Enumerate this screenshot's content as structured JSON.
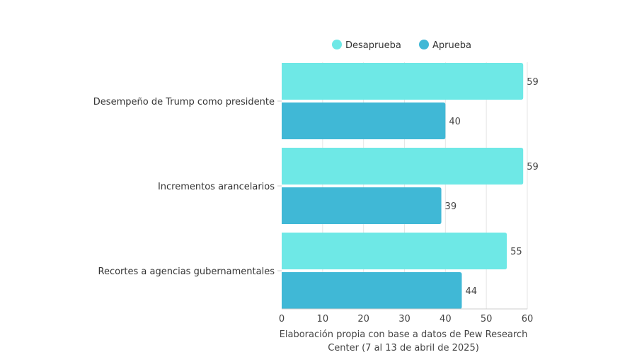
{
  "chart_data": {
    "type": "bar",
    "orientation": "horizontal",
    "categories": [
      "Desempeño de Trump como presidente",
      "Incrementos arancelarios",
      "Recortes a agencias gubernamentales"
    ],
    "series": [
      {
        "name": "Desaprueba",
        "color": "#6ee8e6",
        "values": [
          59,
          59,
          55
        ]
      },
      {
        "name": "Aprueba",
        "color": "#40b8d6",
        "values": [
          40,
          39,
          44
        ]
      }
    ],
    "xlabel_lines": [
      "Elaboración propia con base a datos de Pew Research",
      "Center (7 al 13 de abril de 2025)"
    ],
    "xlim": [
      0,
      60
    ],
    "xticks": [
      0,
      10,
      20,
      30,
      40,
      50,
      60
    ],
    "grid": true,
    "legend_position": "top"
  }
}
